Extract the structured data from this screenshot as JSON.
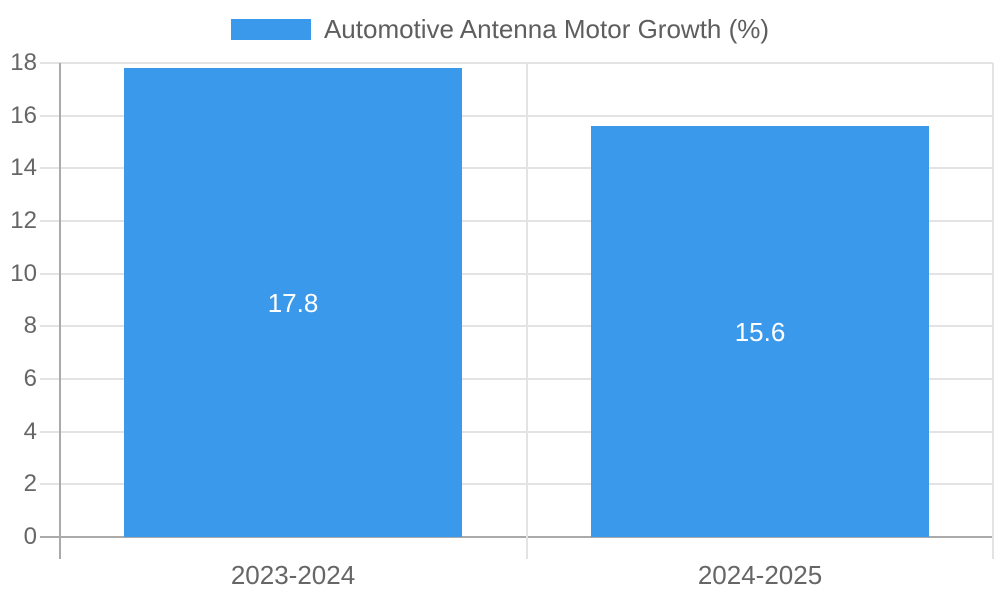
{
  "colors": {
    "bar": "#3b99ec",
    "grid": "#e3e3e3",
    "axis": "#aaaaaa",
    "tick_text": "#666666",
    "legend_text": "#5e5e5e",
    "data_label_text": "#ffffff",
    "background": "#ffffff"
  },
  "chart_data": {
    "type": "bar",
    "title": "",
    "legend_position": "top-center",
    "categories": [
      "2023-2024",
      "2024-2025"
    ],
    "series": [
      {
        "name": "Automotive Antenna Motor Growth (%)",
        "values": [
          17.8,
          15.6
        ]
      }
    ],
    "data_labels": [
      "17.8",
      "15.6"
    ],
    "xlabel": "",
    "ylabel": "",
    "ylim": [
      0,
      18
    ],
    "ytick_step": 2,
    "yticks": [
      0,
      2,
      4,
      6,
      8,
      10,
      12,
      14,
      16,
      18
    ],
    "grid": true
  }
}
